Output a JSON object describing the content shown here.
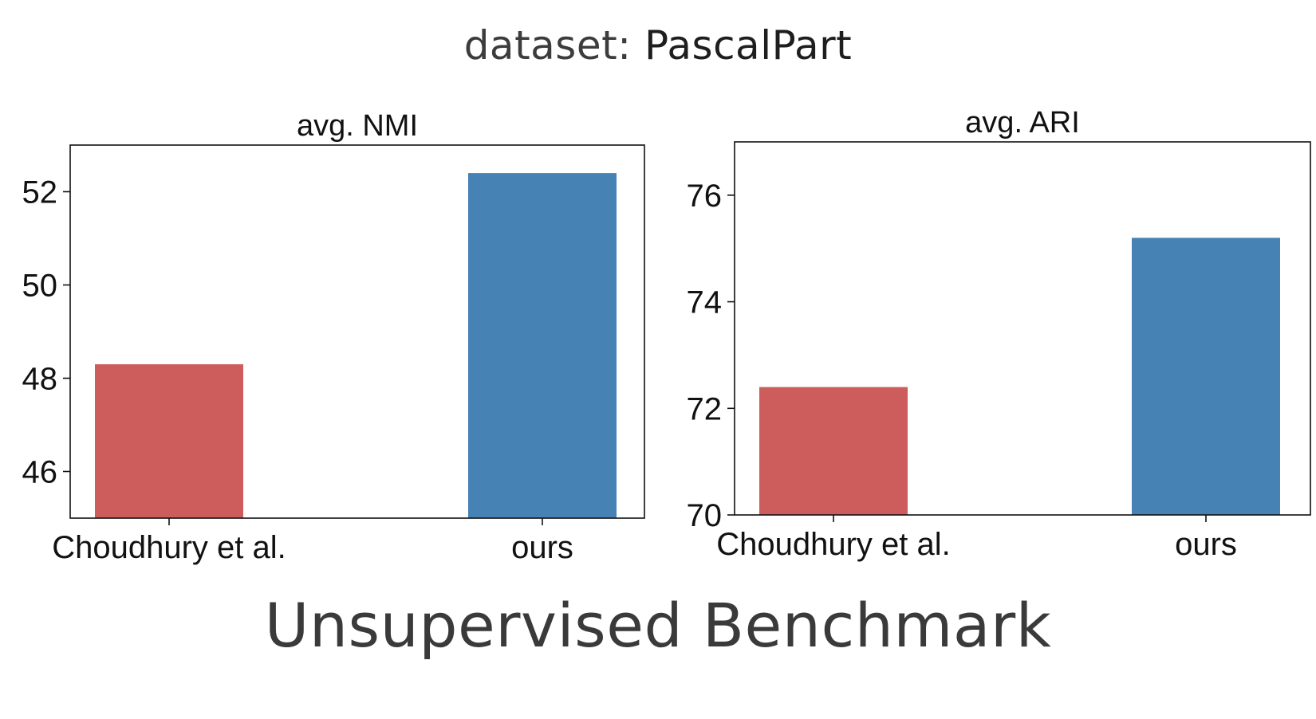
{
  "header": {
    "prefix": "dataset: ",
    "dataset_name": "PascalPart"
  },
  "footer": {
    "text": "Unsupervised Benchmark"
  },
  "chart_data": [
    {
      "type": "bar",
      "title": "avg. NMI",
      "categories": [
        "Choudhury et al.",
        "ours"
      ],
      "values": [
        48.3,
        52.4
      ],
      "colors": [
        "#cd5c5c",
        "#4682b4"
      ],
      "ylim": [
        45,
        53
      ],
      "yticks": [
        46,
        48,
        50,
        52
      ],
      "xlabel": "",
      "ylabel": "",
      "grid": false
    },
    {
      "type": "bar",
      "title": "avg. ARI",
      "categories": [
        "Choudhury et al.",
        "ours"
      ],
      "values": [
        72.4,
        75.2
      ],
      "colors": [
        "#cd5c5c",
        "#4682b4"
      ],
      "ylim": [
        70,
        77
      ],
      "yticks": [
        70,
        72,
        74,
        76
      ],
      "xlabel": "",
      "ylabel": "",
      "grid": false
    }
  ]
}
